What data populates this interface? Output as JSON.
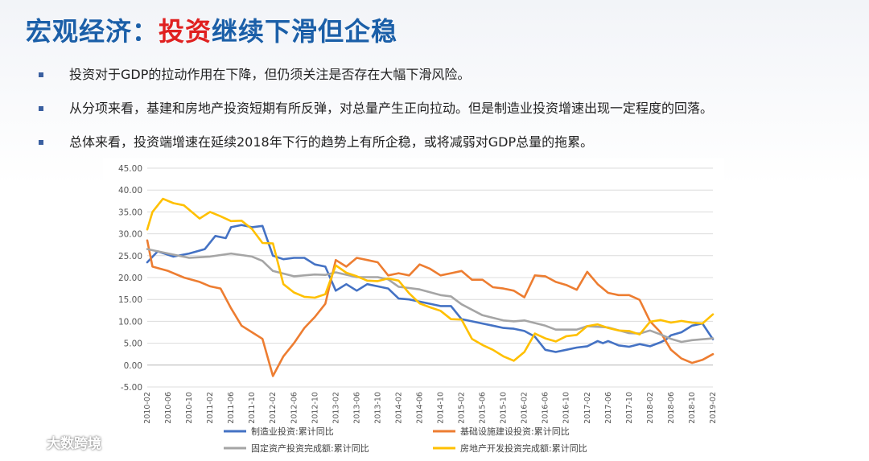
{
  "slide": {
    "title_part1": "宏观经济：",
    "title_part2": "投资",
    "title_part3": "继续下滑但企稳",
    "bullets": [
      "投资对于GDP的拉动作用在下降，但仍须关注是否存在大幅下滑风险。",
      "从分项来看，基建和房地产投资短期有所反弹，对总量产生正向拉动。但是制造业投资增速出现一定程度的回落。",
      "总体来看，投资端增速在延续2018年下行的趋势上有所企稳，或将减弱对GDP总量的拖累。"
    ],
    "accent_color": "#e02020",
    "title_color": "#1b5fa8"
  },
  "watermark": {
    "text": "大数跨境",
    "icon": "camera-logo-icon"
  },
  "chart_data": {
    "type": "line",
    "title": "",
    "xlabel": "",
    "ylabel": "",
    "ylim": [
      -5,
      45
    ],
    "yticks": [
      "-5.00",
      "0.00",
      "5.00",
      "10.00",
      "15.00",
      "20.00",
      "25.00",
      "30.00",
      "35.00",
      "40.00",
      "45.00"
    ],
    "xticks": [
      "2010-02",
      "2010-06",
      "2010-10",
      "2011-02",
      "2011-06",
      "2011-10",
      "2012-02",
      "2012-06",
      "2012-10",
      "2013-02",
      "2013-06",
      "2013-10",
      "2014-02",
      "2014-06",
      "2014-10",
      "2015-02",
      "2015-06",
      "2015-10",
      "2016-02",
      "2016-06",
      "2016-10",
      "2017-02",
      "2017-06",
      "2017-10",
      "2018-02",
      "2018-06",
      "2018-10",
      "2019-02"
    ],
    "grid": true,
    "legend_position": "bottom",
    "x_start": "2010-02",
    "x_end": "2019-02",
    "series": [
      {
        "name": "制造业投资:累计同比",
        "color": "#4472c4",
        "points": [
          [
            "2010-02",
            23.5
          ],
          [
            "2010-04",
            26
          ],
          [
            "2010-07",
            24.8
          ],
          [
            "2010-10",
            25.5
          ],
          [
            "2011-01",
            26.5
          ],
          [
            "2011-03",
            29.5
          ],
          [
            "2011-05",
            29
          ],
          [
            "2011-06",
            31.5
          ],
          [
            "2011-08",
            32
          ],
          [
            "2011-10",
            31.5
          ],
          [
            "2011-12",
            31.8
          ],
          [
            "2012-02",
            25
          ],
          [
            "2012-04",
            24.2
          ],
          [
            "2012-06",
            24.5
          ],
          [
            "2012-08",
            24.5
          ],
          [
            "2012-10",
            23
          ],
          [
            "2012-12",
            22.5
          ],
          [
            "2013-02",
            17
          ],
          [
            "2013-04",
            18.5
          ],
          [
            "2013-06",
            17
          ],
          [
            "2013-08",
            18.5
          ],
          [
            "2013-10",
            18
          ],
          [
            "2013-12",
            17.5
          ],
          [
            "2014-02",
            15.2
          ],
          [
            "2014-04",
            15
          ],
          [
            "2014-06",
            14.5
          ],
          [
            "2014-08",
            14
          ],
          [
            "2014-10",
            13.5
          ],
          [
            "2014-12",
            13.5
          ],
          [
            "2015-02",
            10.5
          ],
          [
            "2015-04",
            10
          ],
          [
            "2015-06",
            9.5
          ],
          [
            "2015-08",
            9
          ],
          [
            "2015-10",
            8.5
          ],
          [
            "2015-12",
            8.3
          ],
          [
            "2016-02",
            7.8
          ],
          [
            "2016-04",
            6.5
          ],
          [
            "2016-06",
            3.5
          ],
          [
            "2016-08",
            3
          ],
          [
            "2016-10",
            3.5
          ],
          [
            "2016-12",
            4
          ],
          [
            "2017-02",
            4.3
          ],
          [
            "2017-04",
            5.5
          ],
          [
            "2017-05",
            5
          ],
          [
            "2017-06",
            5.5
          ],
          [
            "2017-08",
            4.5
          ],
          [
            "2017-10",
            4.2
          ],
          [
            "2017-12",
            4.8
          ],
          [
            "2018-02",
            4.3
          ],
          [
            "2018-04",
            5.2
          ],
          [
            "2018-05",
            5.8
          ],
          [
            "2018-06",
            6.8
          ],
          [
            "2018-08",
            7.5
          ],
          [
            "2018-10",
            9
          ],
          [
            "2018-12",
            9.5
          ],
          [
            "2019-02",
            5.9
          ]
        ]
      },
      {
        "name": "基础设施建设投资:累计同比",
        "color": "#ed7d31",
        "points": [
          [
            "2010-02",
            28.5
          ],
          [
            "2010-03",
            22.5
          ],
          [
            "2010-06",
            21.5
          ],
          [
            "2010-09",
            20
          ],
          [
            "2010-12",
            19
          ],
          [
            "2011-02",
            18
          ],
          [
            "2011-04",
            17.5
          ],
          [
            "2011-06",
            13
          ],
          [
            "2011-08",
            9
          ],
          [
            "2011-10",
            7.5
          ],
          [
            "2011-12",
            6
          ],
          [
            "2012-02",
            -2.5
          ],
          [
            "2012-04",
            2
          ],
          [
            "2012-06",
            5
          ],
          [
            "2012-08",
            8.5
          ],
          [
            "2012-10",
            11
          ],
          [
            "2012-12",
            14
          ],
          [
            "2013-02",
            24
          ],
          [
            "2013-04",
            22.5
          ],
          [
            "2013-06",
            24.5
          ],
          [
            "2013-08",
            24
          ],
          [
            "2013-10",
            23.5
          ],
          [
            "2013-12",
            20.5
          ],
          [
            "2014-02",
            21
          ],
          [
            "2014-04",
            20.5
          ],
          [
            "2014-06",
            23
          ],
          [
            "2014-08",
            22
          ],
          [
            "2014-10",
            20.5
          ],
          [
            "2014-12",
            21
          ],
          [
            "2015-02",
            21.5
          ],
          [
            "2015-04",
            19.5
          ],
          [
            "2015-06",
            19.5
          ],
          [
            "2015-08",
            17.8
          ],
          [
            "2015-10",
            17.5
          ],
          [
            "2015-12",
            17
          ],
          [
            "2016-02",
            15.5
          ],
          [
            "2016-04",
            20.5
          ],
          [
            "2016-06",
            20.3
          ],
          [
            "2016-08",
            19
          ],
          [
            "2016-10",
            18.3
          ],
          [
            "2016-12",
            17.2
          ],
          [
            "2017-02",
            21.3
          ],
          [
            "2017-04",
            18.5
          ],
          [
            "2017-06",
            16.5
          ],
          [
            "2017-08",
            16
          ],
          [
            "2017-10",
            16
          ],
          [
            "2017-12",
            14.9
          ],
          [
            "2018-02",
            10
          ],
          [
            "2018-04",
            7.5
          ],
          [
            "2018-06",
            3.5
          ],
          [
            "2018-08",
            1.5
          ],
          [
            "2018-10",
            0.5
          ],
          [
            "2018-12",
            1.2
          ],
          [
            "2019-02",
            2.5
          ]
        ]
      },
      {
        "name": "固定资产投资完成额:累计同比",
        "color": "#a5a5a5",
        "points": [
          [
            "2010-02",
            26.5
          ],
          [
            "2010-06",
            25.5
          ],
          [
            "2010-10",
            24.5
          ],
          [
            "2011-02",
            24.8
          ],
          [
            "2011-06",
            25.5
          ],
          [
            "2011-10",
            24.8
          ],
          [
            "2011-12",
            23.8
          ],
          [
            "2012-02",
            21.5
          ],
          [
            "2012-06",
            20.3
          ],
          [
            "2012-10",
            20.7
          ],
          [
            "2012-12",
            20.6
          ],
          [
            "2013-02",
            21.2
          ],
          [
            "2013-06",
            20.1
          ],
          [
            "2013-10",
            20.1
          ],
          [
            "2013-12",
            19.6
          ],
          [
            "2014-02",
            17.9
          ],
          [
            "2014-06",
            17.3
          ],
          [
            "2014-10",
            16
          ],
          [
            "2014-12",
            15.7
          ],
          [
            "2015-02",
            13.9
          ],
          [
            "2015-06",
            11.4
          ],
          [
            "2015-10",
            10.2
          ],
          [
            "2015-12",
            10
          ],
          [
            "2016-02",
            10.2
          ],
          [
            "2016-06",
            9
          ],
          [
            "2016-08",
            8.1
          ],
          [
            "2016-12",
            8.1
          ],
          [
            "2017-02",
            8.9
          ],
          [
            "2017-06",
            8.6
          ],
          [
            "2017-10",
            7.3
          ],
          [
            "2017-12",
            7.2
          ],
          [
            "2018-02",
            7.9
          ],
          [
            "2018-04",
            7
          ],
          [
            "2018-06",
            6
          ],
          [
            "2018-08",
            5.3
          ],
          [
            "2018-10",
            5.7
          ],
          [
            "2018-12",
            5.9
          ],
          [
            "2019-02",
            6.1
          ]
        ]
      },
      {
        "name": "房地产开发投资完成额:累计同比",
        "color": "#ffc000",
        "points": [
          [
            "2010-02",
            31
          ],
          [
            "2010-03",
            35
          ],
          [
            "2010-05",
            38
          ],
          [
            "2010-07",
            37
          ],
          [
            "2010-09",
            36.5
          ],
          [
            "2010-12",
            33.5
          ],
          [
            "2011-02",
            35
          ],
          [
            "2011-04",
            34
          ],
          [
            "2011-06",
            32.9
          ],
          [
            "2011-08",
            33
          ],
          [
            "2011-10",
            31.1
          ],
          [
            "2011-12",
            27.9
          ],
          [
            "2012-02",
            27.8
          ],
          [
            "2012-04",
            18.5
          ],
          [
            "2012-06",
            16.6
          ],
          [
            "2012-08",
            15.6
          ],
          [
            "2012-10",
            15.4
          ],
          [
            "2012-12",
            16.2
          ],
          [
            "2013-02",
            22.8
          ],
          [
            "2013-04",
            21.1
          ],
          [
            "2013-06",
            20.3
          ],
          [
            "2013-08",
            19.3
          ],
          [
            "2013-10",
            19.2
          ],
          [
            "2013-12",
            19.8
          ],
          [
            "2014-02",
            19.3
          ],
          [
            "2014-04",
            16.4
          ],
          [
            "2014-06",
            14.1
          ],
          [
            "2014-08",
            13.2
          ],
          [
            "2014-10",
            12.4
          ],
          [
            "2014-12",
            10.5
          ],
          [
            "2015-02",
            10.4
          ],
          [
            "2015-04",
            6
          ],
          [
            "2015-06",
            4.6
          ],
          [
            "2015-08",
            3.5
          ],
          [
            "2015-10",
            2
          ],
          [
            "2015-12",
            1
          ],
          [
            "2016-02",
            3
          ],
          [
            "2016-04",
            7.2
          ],
          [
            "2016-06",
            6.1
          ],
          [
            "2016-08",
            5.4
          ],
          [
            "2016-10",
            6.6
          ],
          [
            "2016-12",
            6.9
          ],
          [
            "2017-02",
            8.9
          ],
          [
            "2017-04",
            9.3
          ],
          [
            "2017-06",
            8.5
          ],
          [
            "2017-08",
            7.9
          ],
          [
            "2017-10",
            7.8
          ],
          [
            "2017-12",
            7
          ],
          [
            "2018-02",
            9.9
          ],
          [
            "2018-04",
            10.3
          ],
          [
            "2018-06",
            9.7
          ],
          [
            "2018-08",
            10.1
          ],
          [
            "2018-10",
            9.7
          ],
          [
            "2018-12",
            9.5
          ],
          [
            "2019-02",
            11.6
          ]
        ]
      }
    ]
  }
}
